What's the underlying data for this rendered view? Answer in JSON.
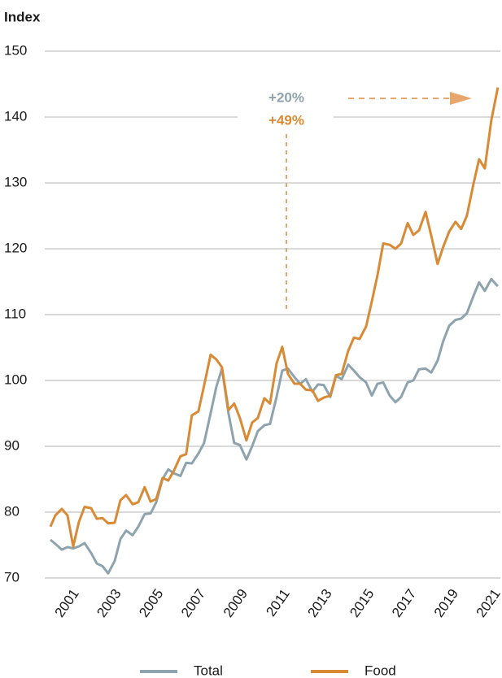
{
  "chart_data": {
    "type": "line",
    "y_axis_label": "Index",
    "x": [
      2000.0,
      2000.23,
      2000.54,
      2000.81,
      2001.08,
      2001.35,
      2001.62,
      2001.93,
      2002.2,
      2002.47,
      2002.74,
      2003.05,
      2003.32,
      2003.59,
      2003.9,
      2004.17,
      2004.47,
      2004.75,
      2005.02,
      2005.32,
      2005.59,
      2005.86,
      2006.17,
      2006.44,
      2006.71,
      2007.02,
      2007.29,
      2007.6,
      2007.87,
      2008.14,
      2008.45,
      2008.72,
      2008.99,
      2009.3,
      2009.57,
      2009.84,
      2010.15,
      2010.42,
      2010.73,
      2011.0,
      2011.27,
      2011.58,
      2011.85,
      2012.12,
      2012.43,
      2012.7,
      2012.97,
      2013.28,
      2013.55,
      2013.82,
      2014.13,
      2014.4,
      2014.67,
      2014.98,
      2015.25,
      2015.52,
      2015.79,
      2016.1,
      2016.37,
      2016.64,
      2016.95,
      2017.22,
      2017.49,
      2017.8,
      2018.07,
      2018.37,
      2018.64,
      2018.92,
      2019.22,
      2019.49,
      2019.76,
      2020.07,
      2020.34,
      2020.61,
      2020.92,
      2021.23
    ],
    "series": [
      {
        "name": "Total",
        "color": "#8da3ae",
        "values": [
          75.8,
          75.2,
          74.3,
          74.7,
          74.5,
          74.8,
          75.3,
          73.8,
          72.2,
          71.8,
          70.7,
          72.6,
          75.9,
          77.2,
          76.5,
          77.8,
          79.7,
          79.8,
          81.5,
          85.0,
          86.5,
          85.9,
          85.5,
          87.5,
          87.4,
          88.9,
          90.5,
          95.0,
          99.0,
          101.8,
          95.0,
          90.5,
          90.2,
          88.0,
          90.0,
          92.3,
          93.2,
          93.4,
          97.5,
          101.5,
          101.8,
          100.5,
          99.5,
          100.2,
          98.3,
          99.4,
          99.3,
          97.5,
          100.7,
          100.2,
          102.4,
          101.5,
          100.5,
          99.7,
          97.7,
          99.5,
          99.7,
          97.7,
          96.7,
          97.5,
          99.7,
          100.0,
          101.7,
          101.8,
          101.2,
          103.0,
          106.0,
          108.3,
          109.2,
          109.4,
          110.2,
          112.8,
          114.9,
          113.6,
          115.4,
          114.3
        ]
      },
      {
        "name": "Food",
        "color": "#d98a35",
        "values": [
          77.8,
          79.5,
          80.5,
          79.5,
          74.8,
          78.5,
          80.8,
          80.6,
          79.0,
          79.1,
          78.3,
          78.4,
          81.8,
          82.6,
          81.2,
          81.5,
          83.8,
          81.6,
          82.0,
          85.2,
          84.8,
          86.3,
          88.5,
          88.8,
          94.7,
          95.3,
          99.2,
          103.9,
          103.2,
          102.0,
          95.5,
          96.5,
          94.3,
          90.9,
          93.6,
          94.3,
          97.3,
          96.5,
          102.6,
          105.1,
          101.0,
          99.5,
          99.5,
          98.6,
          98.5,
          96.9,
          97.4,
          97.7,
          100.8,
          101.0,
          104.5,
          106.5,
          106.3,
          108.2,
          112.0,
          116.0,
          120.8,
          120.6,
          120.0,
          120.8,
          123.9,
          122.1,
          122.8,
          125.6,
          122.0,
          117.7,
          120.3,
          122.6,
          124.1,
          123.0,
          125.0,
          129.8,
          133.6,
          132.2,
          139.5,
          144.5
        ]
      }
    ],
    "annotations": [
      {
        "text": "+20%",
        "color": "#8da3ae"
      },
      {
        "text": "+49%",
        "color": "#d98a35"
      }
    ],
    "xlim": [
      1999.73,
      2021.35
    ],
    "xticks": [
      2001,
      2003,
      2005,
      2007,
      2009,
      2011,
      2013,
      2015,
      2017,
      2019,
      2021
    ],
    "ylim": [
      70,
      150
    ],
    "yticks": [
      70,
      80,
      90,
      100,
      110,
      120,
      130,
      140,
      150
    ],
    "grid": true,
    "legend": "bottom"
  }
}
